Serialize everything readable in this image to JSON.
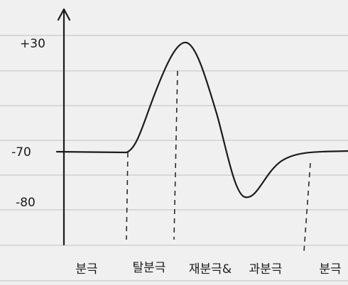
{
  "y_labels": [
    "+30",
    "-70",
    "-80"
  ],
  "phases": [
    "분극",
    "탈분극",
    "재분극&",
    "과분극",
    "분극"
  ]
}
